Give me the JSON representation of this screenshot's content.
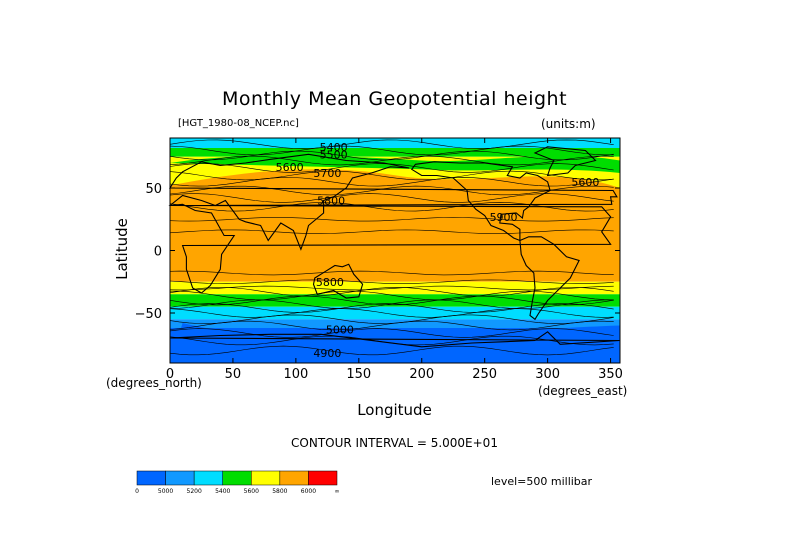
{
  "title": "Monthly Mean Geopotential height",
  "file_label": "[HGT_1980-08_NCEP.nc]",
  "units_label": "(units:m)",
  "x_axis": {
    "label": "Longitude",
    "unit_label": "(degrees_east)",
    "ticks": [
      "0",
      "50",
      "100",
      "150",
      "200",
      "250",
      "300",
      "350"
    ],
    "tick_values": [
      0,
      50,
      100,
      150,
      200,
      250,
      300,
      350
    ],
    "range": [
      0,
      357.5
    ]
  },
  "y_axis": {
    "label": "Latitude",
    "unit_label": "(degrees_north)",
    "ticks": [
      "50",
      "0",
      "−50"
    ],
    "tick_values": [
      50,
      0,
      -50
    ],
    "range": [
      -90,
      90
    ]
  },
  "contour_interval_text": "CONTOUR INTERVAL = 5.000E+01",
  "level_text": "level=500 millibar",
  "contour_labels": [
    {
      "text": "5400",
      "lon": 130,
      "lat": 83
    },
    {
      "text": "5500",
      "lon": 130,
      "lat": 77
    },
    {
      "text": "5600",
      "lon": 95,
      "lat": 67
    },
    {
      "text": "5700",
      "lon": 125,
      "lat": 62
    },
    {
      "text": "5800",
      "lon": 128,
      "lat": 40
    },
    {
      "text": "5900",
      "lon": 265,
      "lat": 27
    },
    {
      "text": "5600",
      "lon": 330,
      "lat": 55
    },
    {
      "text": "5800",
      "lon": 127,
      "lat": -25
    },
    {
      "text": "5000",
      "lon": 135,
      "lat": -63
    },
    {
      "text": "4900",
      "lon": 125,
      "lat": -82
    }
  ],
  "legend": {
    "colors": [
      "#0066ff",
      "#1199ff",
      "#00ddff",
      "#00dd00",
      "#ffff00",
      "#ffa500",
      "#ff0000"
    ],
    "labels": [
      "0",
      "5000",
      "5200",
      "5400",
      "5600",
      "5800",
      "6000",
      "∞"
    ]
  },
  "map_colors": {
    "background": "#ffffff",
    "land_outline": "#000000",
    "contour_line": "#000000"
  }
}
